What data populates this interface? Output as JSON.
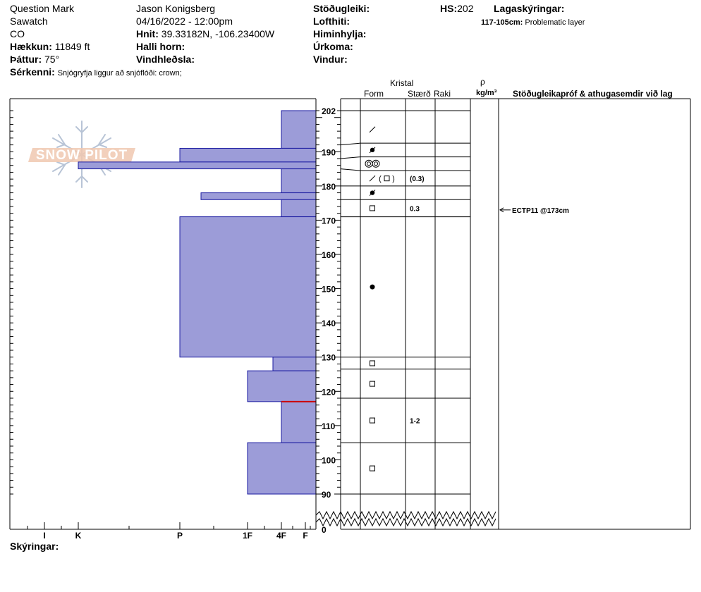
{
  "header": {
    "location": "Question Mark",
    "range": "Sawatch",
    "state": "CO",
    "elevation_label": "Hækkun:",
    "elevation_value": "11849 ft",
    "aspect_label": "Þáttur:",
    "aspect_value": "75°",
    "features_label": "Sérkenni:",
    "features_value": "Snjógryfja liggur að snjóflóði: crown;",
    "observer": "Jason Konigsberg",
    "datetime": "04/16/2022 - 12:00pm",
    "coords_label": "Hnit:",
    "coords_value": "39.33182N, -106.23400W",
    "slope_label": "Halli horn:",
    "wind_loading_label": "Vindhleðsla:",
    "stability_label": "Stöðugleiki:",
    "air_temp_label": "Lofthiti:",
    "sky_label": "Himinhylja:",
    "precip_label": "Úrkoma:",
    "wind_label": "Vindur:",
    "hs_label": "HS:",
    "hs_value": "202",
    "layer_notes_label": "Lagaskýringar:",
    "layer_note_range": "117-105cm:",
    "layer_note_text": "Problematic layer"
  },
  "columns": {
    "crystal": "Kristal",
    "form": "Form",
    "size": "Stærð",
    "moisture": "Raki",
    "rho": "ρ",
    "density_unit": "kg/m³",
    "tests": "Stöðugleikapróf & athugasemdir við lag"
  },
  "footer": {
    "notes_label": "Skýringar:"
  },
  "logo_text": "SNOW PILOT",
  "colors": {
    "hardness_fill": "#9c9cd8",
    "hardness_edge": "#1a1aa0",
    "problem_layer": "#cc0000"
  },
  "chart_data": {
    "type": "snow-profile",
    "y_unit": "cm",
    "y_ticks": [
      202,
      190,
      180,
      170,
      160,
      150,
      140,
      130,
      120,
      110,
      100,
      90,
      0
    ],
    "y_break": [
      0,
      87
    ],
    "hardness_scale": [
      "I",
      "K",
      "P",
      "1F",
      "4F",
      "F"
    ],
    "hardness_layers": [
      {
        "top": 202,
        "bottom": 191,
        "hardness": "4F"
      },
      {
        "top": 191,
        "bottom": 187,
        "hardness": "P"
      },
      {
        "top": 187,
        "bottom": 185,
        "hardness": "K"
      },
      {
        "top": 185,
        "bottom": 178,
        "hardness": "4F"
      },
      {
        "top": 178,
        "bottom": 176,
        "hardness": "P+"
      },
      {
        "top": 176,
        "bottom": 171,
        "hardness": "4F"
      },
      {
        "top": 171,
        "bottom": 130,
        "hardness": "P"
      },
      {
        "top": 130,
        "bottom": 126,
        "hardness": "4F+"
      },
      {
        "top": 126,
        "bottom": 117,
        "hardness": "1F"
      },
      {
        "top": 117,
        "bottom": 105,
        "hardness": "4F"
      },
      {
        "top": 105,
        "bottom": 90,
        "hardness": "1F"
      }
    ],
    "problem_layer_cm": 117,
    "crystal_boundaries": [
      202,
      192.5,
      188.5,
      184.5,
      180,
      176,
      171,
      130,
      126.5,
      118,
      105,
      90
    ],
    "crystals": [
      {
        "cm": 196.5,
        "form": "precipitation-particles",
        "size": ""
      },
      {
        "cm": 190.5,
        "form": "decomposing-fragmented",
        "size": ""
      },
      {
        "cm": 186.5,
        "form": "rounded-double",
        "size": ""
      },
      {
        "cm": 182.2,
        "form": "precipitation-faceted",
        "size": "(0.3)"
      },
      {
        "cm": 178,
        "form": "decomposing-fragmented",
        "size": ""
      },
      {
        "cm": 173.5,
        "form": "faceted",
        "size": "0.3"
      },
      {
        "cm": 150.5,
        "form": "rounded",
        "size": ""
      },
      {
        "cm": 128.2,
        "form": "faceted",
        "size": ""
      },
      {
        "cm": 122.2,
        "form": "faceted",
        "size": ""
      },
      {
        "cm": 111.5,
        "form": "faceted",
        "size": "1-2"
      },
      {
        "cm": 97.5,
        "form": "faceted",
        "size": ""
      }
    ],
    "stability_tests": [
      {
        "cm": 173,
        "label": "ECTP11 @173cm"
      }
    ]
  }
}
